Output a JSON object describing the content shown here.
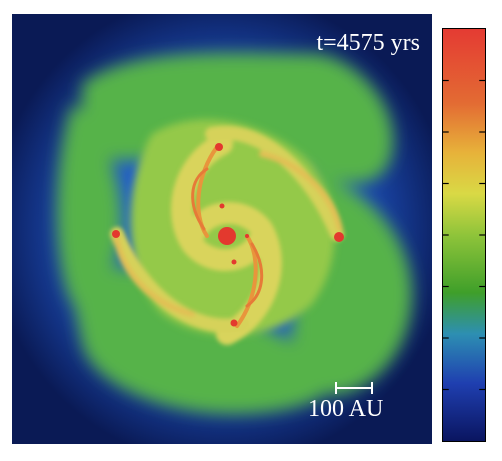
{
  "annotations": {
    "time_label": "t=4575 yrs",
    "scale_label": "100 AU"
  },
  "colorbar": {
    "tick_count": 7,
    "colors": [
      "#0a1560",
      "#1f3fb0",
      "#2aa8a8",
      "#3f9f2a",
      "#8fc43a",
      "#d9d945",
      "#e7b23a",
      "#e36b33",
      "#e43b33"
    ]
  },
  "colors": {
    "background": "#0a1a55",
    "outer_blue": "#1d58c8",
    "green": "#57b548",
    "light_green": "#9acb4a",
    "yellow": "#d8d35a",
    "orange": "#e99a3c",
    "red": "#e3392e"
  }
}
